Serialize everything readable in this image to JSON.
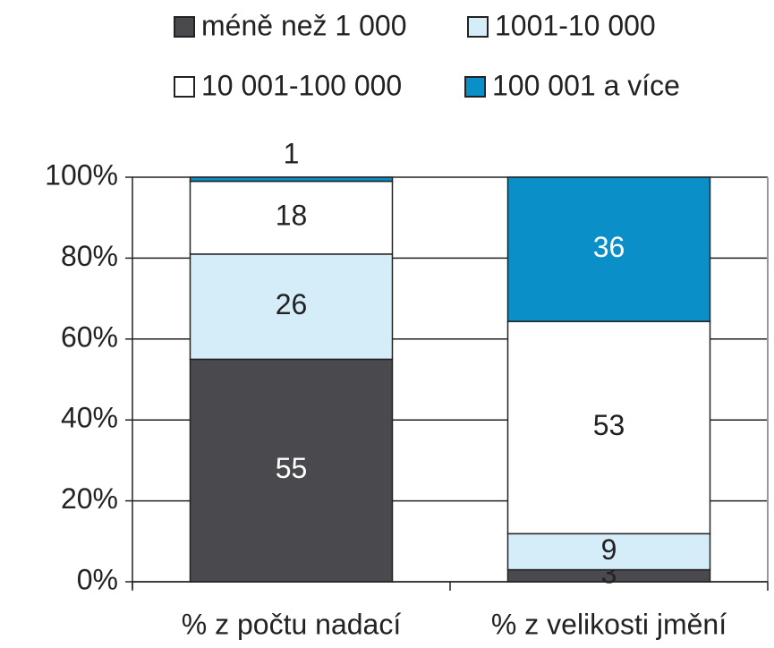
{
  "chart_data": {
    "type": "stacked_percent_bar",
    "categories": [
      "% z počtu nadací",
      "% z velikosti jmění"
    ],
    "series": [
      {
        "name": "méně než 1 000",
        "color": "#4a494e",
        "values": [
          55,
          3
        ]
      },
      {
        "name": "1001-10 000",
        "color": "#d5ecf9",
        "values": [
          26,
          9
        ]
      },
      {
        "name": "10 001-100 000",
        "color": "#ffffff",
        "values": [
          18,
          53
        ]
      },
      {
        "name": "100 001 a více",
        "color": "#0a8fc8",
        "values": [
          1,
          36
        ]
      }
    ],
    "ylim": [
      0,
      100
    ],
    "yticks": [
      {
        "value": 0,
        "label": "0%"
      },
      {
        "value": 20,
        "label": "20%"
      },
      {
        "value": 40,
        "label": "40%"
      },
      {
        "value": 60,
        "label": "60%"
      },
      {
        "value": 80,
        "label": "80%"
      },
      {
        "value": 100,
        "label": "100%"
      }
    ],
    "grid": true
  }
}
